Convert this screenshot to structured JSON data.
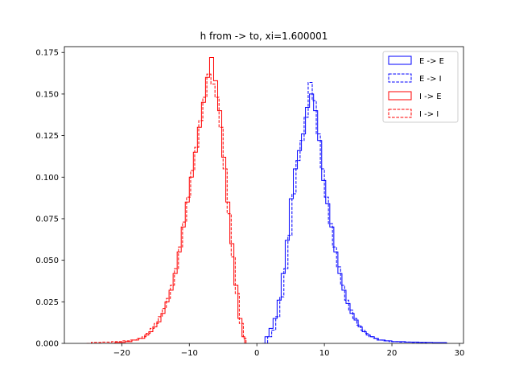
{
  "chart_data": {
    "type": "step-histogram",
    "title": "h from -> to, xi=1.600001",
    "xlabel": "",
    "ylabel": "",
    "xlim": [
      -28.5,
      30.6
    ],
    "ylim": [
      0,
      0.1785
    ],
    "xticks": [
      -20,
      -10,
      0,
      10,
      20,
      30
    ],
    "yticks": [
      0.0,
      0.025,
      0.05,
      0.075,
      0.1,
      0.125,
      0.15,
      0.175
    ],
    "xtick_labels": [
      "−20",
      "−10",
      "0",
      "10",
      "20",
      "30"
    ],
    "ytick_labels": [
      "0.000",
      "0.025",
      "0.050",
      "0.075",
      "0.100",
      "0.125",
      "0.150",
      "0.175"
    ],
    "grid": false,
    "legend_position": "top-right",
    "series": [
      {
        "name": "E -> E",
        "color": "#0000ff",
        "linestyle": "solid",
        "points": [
          [
            0.8,
            0
          ],
          [
            1.2,
            0.004
          ],
          [
            1.8,
            0.009
          ],
          [
            2.4,
            0.015
          ],
          [
            3.0,
            0.026
          ],
          [
            3.6,
            0.042
          ],
          [
            4.2,
            0.062
          ],
          [
            4.8,
            0.087
          ],
          [
            5.4,
            0.105
          ],
          [
            6.0,
            0.116
          ],
          [
            6.6,
            0.126
          ],
          [
            7.2,
            0.142
          ],
          [
            7.8,
            0.15
          ],
          [
            8.4,
            0.14
          ],
          [
            9.0,
            0.122
          ],
          [
            9.6,
            0.098
          ],
          [
            10.2,
            0.084
          ],
          [
            10.8,
            0.07
          ],
          [
            11.4,
            0.055
          ],
          [
            12.0,
            0.042
          ],
          [
            12.6,
            0.032
          ],
          [
            13.2,
            0.024
          ],
          [
            13.8,
            0.018
          ],
          [
            14.4,
            0.014
          ],
          [
            15.0,
            0.01
          ],
          [
            15.6,
            0.007
          ],
          [
            16.2,
            0.005
          ],
          [
            16.8,
            0.004
          ],
          [
            17.4,
            0.003
          ],
          [
            18.0,
            0.002
          ],
          [
            19.0,
            0.0015
          ],
          [
            20.0,
            0.001
          ],
          [
            22.0,
            0.0008
          ],
          [
            24.0,
            0.0006
          ],
          [
            26.0,
            0.0005
          ],
          [
            28.0,
            0.0004
          ],
          [
            28.1,
            0
          ]
        ]
      },
      {
        "name": "E -> I",
        "color": "#0000ff",
        "linestyle": "dashed",
        "points": [
          [
            1.0,
            0
          ],
          [
            1.6,
            0.004
          ],
          [
            2.2,
            0.008
          ],
          [
            2.8,
            0.016
          ],
          [
            3.4,
            0.028
          ],
          [
            4.0,
            0.045
          ],
          [
            4.6,
            0.065
          ],
          [
            5.2,
            0.09
          ],
          [
            5.8,
            0.11
          ],
          [
            6.4,
            0.122
          ],
          [
            7.0,
            0.136
          ],
          [
            7.6,
            0.157
          ],
          [
            8.2,
            0.146
          ],
          [
            8.8,
            0.126
          ],
          [
            9.4,
            0.105
          ],
          [
            10.0,
            0.088
          ],
          [
            10.6,
            0.072
          ],
          [
            11.2,
            0.058
          ],
          [
            11.8,
            0.046
          ],
          [
            12.4,
            0.035
          ],
          [
            13.0,
            0.026
          ],
          [
            13.6,
            0.02
          ],
          [
            14.2,
            0.015
          ],
          [
            14.8,
            0.011
          ],
          [
            15.4,
            0.008
          ],
          [
            16.0,
            0.006
          ],
          [
            16.6,
            0.004
          ],
          [
            17.2,
            0.003
          ],
          [
            17.8,
            0.002
          ],
          [
            18.6,
            0.0015
          ],
          [
            19.6,
            0.001
          ],
          [
            21.0,
            0.0008
          ],
          [
            23.0,
            0.0006
          ],
          [
            25.0,
            0.0004
          ],
          [
            25.1,
            0
          ]
        ]
      },
      {
        "name": "I -> E",
        "color": "#ff0000",
        "linestyle": "solid",
        "points": [
          [
            -22.0,
            0
          ],
          [
            -21.0,
            0.0006
          ],
          [
            -19.5,
            0.001
          ],
          [
            -18.5,
            0.002
          ],
          [
            -17.5,
            0.003
          ],
          [
            -16.6,
            0.005
          ],
          [
            -16.0,
            0.007
          ],
          [
            -15.4,
            0.01
          ],
          [
            -14.8,
            0.013
          ],
          [
            -14.2,
            0.018
          ],
          [
            -13.6,
            0.025
          ],
          [
            -13.0,
            0.032
          ],
          [
            -12.4,
            0.042
          ],
          [
            -11.8,
            0.055
          ],
          [
            -11.2,
            0.07
          ],
          [
            -10.6,
            0.085
          ],
          [
            -10.0,
            0.1
          ],
          [
            -9.4,
            0.115
          ],
          [
            -8.8,
            0.13
          ],
          [
            -8.2,
            0.145
          ],
          [
            -7.6,
            0.16
          ],
          [
            -7.0,
            0.172
          ],
          [
            -6.4,
            0.158
          ],
          [
            -5.8,
            0.14
          ],
          [
            -5.2,
            0.112
          ],
          [
            -4.6,
            0.085
          ],
          [
            -4.0,
            0.06
          ],
          [
            -3.4,
            0.035
          ],
          [
            -2.8,
            0.015
          ],
          [
            -2.2,
            0.004
          ],
          [
            -1.8,
            0
          ]
        ]
      },
      {
        "name": "I -> I",
        "color": "#ff0000",
        "linestyle": "dashed",
        "points": [
          [
            -25.2,
            0
          ],
          [
            -24.5,
            0.0006
          ],
          [
            -23.0,
            0.0008
          ],
          [
            -21.5,
            0.001
          ],
          [
            -20.0,
            0.0015
          ],
          [
            -18.8,
            0.002
          ],
          [
            -17.8,
            0.003
          ],
          [
            -17.0,
            0.004
          ],
          [
            -16.4,
            0.006
          ],
          [
            -15.8,
            0.009
          ],
          [
            -15.2,
            0.012
          ],
          [
            -14.6,
            0.016
          ],
          [
            -14.0,
            0.021
          ],
          [
            -13.4,
            0.027
          ],
          [
            -12.8,
            0.035
          ],
          [
            -12.2,
            0.045
          ],
          [
            -11.6,
            0.058
          ],
          [
            -11.0,
            0.073
          ],
          [
            -10.4,
            0.088
          ],
          [
            -9.8,
            0.104
          ],
          [
            -9.2,
            0.118
          ],
          [
            -8.6,
            0.134
          ],
          [
            -8.0,
            0.148
          ],
          [
            -7.4,
            0.162
          ],
          [
            -6.8,
            0.156
          ],
          [
            -6.2,
            0.148
          ],
          [
            -5.6,
            0.13
          ],
          [
            -5.0,
            0.105
          ],
          [
            -4.4,
            0.078
          ],
          [
            -3.8,
            0.052
          ],
          [
            -3.2,
            0.03
          ],
          [
            -2.6,
            0.012
          ],
          [
            -2.0,
            0.003
          ],
          [
            -1.6,
            0
          ]
        ]
      }
    ]
  }
}
